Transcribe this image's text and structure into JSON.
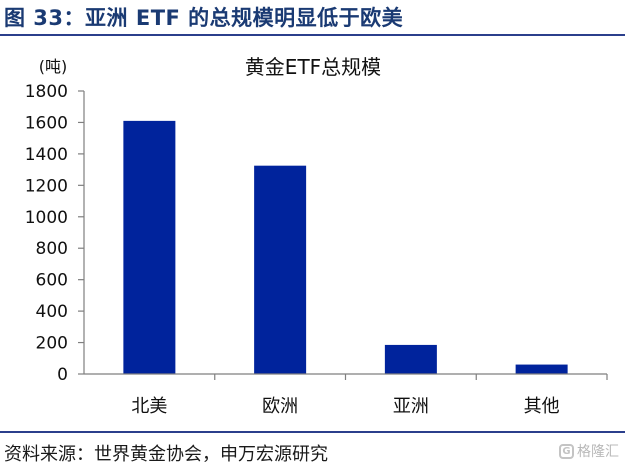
{
  "figure": {
    "title": "图 33：亚洲 ETF 的总规模明显低于欧美",
    "source": "资料来源：世界黄金协会，申万宏源研究",
    "watermark": "格隆汇",
    "watermark_icon": "g-logo-icon"
  },
  "chart_data": {
    "type": "bar",
    "title": "黄金ETF总规模",
    "ylabel": "(吨)",
    "xlabel": "",
    "categories": [
      "北美",
      "欧洲",
      "亚洲",
      "其他"
    ],
    "values": [
      1610,
      1325,
      185,
      60
    ],
    "ylim": [
      0,
      1800
    ],
    "yticks": [
      0,
      200,
      400,
      600,
      800,
      1000,
      1200,
      1400,
      1600,
      1800
    ],
    "grid": false,
    "legend": "none",
    "bar_color": "#00239C"
  }
}
